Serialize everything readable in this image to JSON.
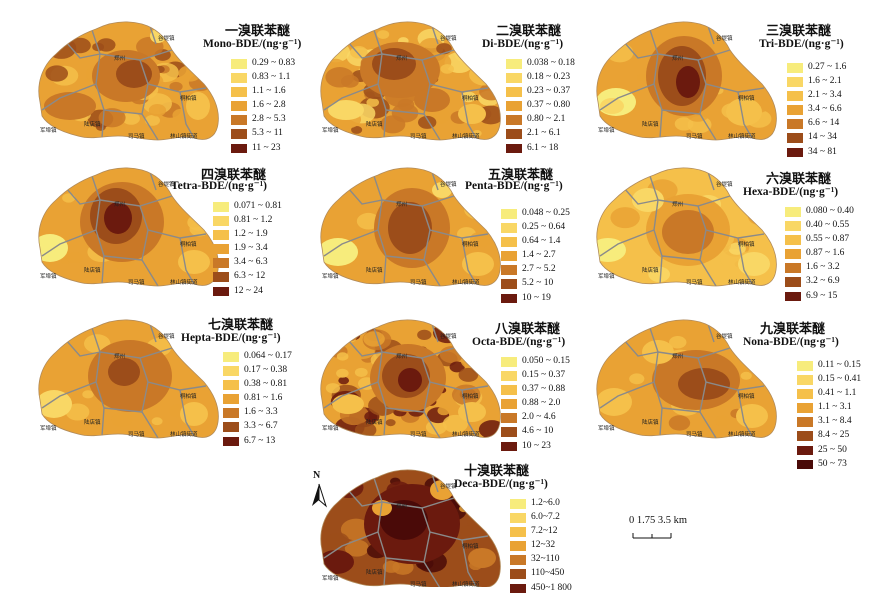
{
  "place_labels": {
    "north_town": "谷堤镇",
    "east_town": "桐柏镇",
    "center_town": "郑州",
    "west_town": "军埠镇",
    "southwest_town": "陆店镇",
    "south_town": "司马镇",
    "southeast_road": "林山镇街道"
  },
  "compass": {
    "letter": "N"
  },
  "scale_bar": {
    "label": "0 1.75 3.5 km"
  },
  "panels": [
    {
      "id": "mono",
      "title_cn": "一溴联苯醚",
      "title_en": "Mono-BDE/(ng·g⁻¹)",
      "legend": [
        "0.29 ~ 0.83",
        "0.83 ~ 1.1",
        "1.1 ~ 1.6",
        "1.6 ~ 2.8",
        "2.8 ~ 5.3",
        "5.3 ~ 11",
        "11 ~ 23"
      ]
    },
    {
      "id": "di",
      "title_cn": "二溴联苯醚",
      "title_en": "Di-BDE/(ng·g⁻¹)",
      "legend": [
        "0.038 ~ 0.18",
        "0.18 ~ 0.23",
        "0.23 ~ 0.37",
        "0.37 ~ 0.80",
        "0.80 ~ 2.1",
        "2.1 ~ 6.1",
        "6.1 ~ 18"
      ]
    },
    {
      "id": "tri",
      "title_cn": "三溴联苯醚",
      "title_en": "Tri-BDE/(ng·g⁻¹)",
      "legend": [
        "0.27 ~ 1.6",
        "1.6 ~ 2.1",
        "2.1 ~ 3.4",
        "3.4 ~ 6.6",
        "6.6 ~ 14",
        "14 ~ 34",
        "34 ~ 81"
      ]
    },
    {
      "id": "tetra",
      "title_cn": "四溴联苯醚",
      "title_en": "Tetra-BDE/(ng·g⁻¹)",
      "legend": [
        "0.071 ~ 0.81",
        "0.81 ~ 1.2",
        "1.2 ~ 1.9",
        "1.9 ~ 3.4",
        "3.4 ~ 6.3",
        "6.3 ~ 12",
        "12 ~ 24"
      ]
    },
    {
      "id": "penta",
      "title_cn": "五溴联苯醚",
      "title_en": "Penta-BDE/(ng·g⁻¹)",
      "legend": [
        "0.048 ~ 0.25",
        "0.25 ~ 0.64",
        "0.64 ~ 1.4",
        "1.4 ~ 2.7",
        "2.7 ~ 5.2",
        "5.2 ~ 10",
        "10 ~ 19"
      ]
    },
    {
      "id": "hexa",
      "title_cn": "六溴联苯醚",
      "title_en": "Hexa-BDE/(ng·g⁻¹)",
      "legend": [
        "0.080 ~ 0.40",
        "0.40 ~ 0.55",
        "0.55 ~ 0.87",
        "0.87 ~ 1.6",
        "1.6 ~ 3.2",
        "3.2 ~ 6.9",
        "6.9 ~ 15"
      ]
    },
    {
      "id": "hepta",
      "title_cn": "七溴联苯醚",
      "title_en": "Hepta-BDE/(ng·g⁻¹)",
      "legend": [
        "0.064 ~ 0.17",
        "0.17 ~ 0.38",
        "0.38 ~ 0.81",
        "0.81 ~ 1.6",
        "1.6 ~ 3.3",
        "3.3 ~ 6.7",
        "6.7 ~ 13"
      ]
    },
    {
      "id": "octa",
      "title_cn": "八溴联苯醚",
      "title_en": "Octa-BDE/(ng·g⁻¹)",
      "legend": [
        "0.050 ~ 0.15",
        "0.15 ~ 0.37",
        "0.37 ~ 0.88",
        "0.88 ~ 2.0",
        "2.0 ~ 4.6",
        "4.6 ~ 10",
        "10 ~ 23"
      ]
    },
    {
      "id": "nona",
      "title_cn": "九溴联苯醚",
      "title_en": "Nona-BDE/(ng·g⁻¹)",
      "legend": [
        "0.11 ~ 0.15",
        "0.15 ~ 0.41",
        "0.41 ~ 1.1",
        "1.1 ~ 3.1",
        "3.1 ~ 8.4",
        "8.4 ~ 25",
        "25 ~ 50",
        "50 ~ 73"
      ]
    },
    {
      "id": "deca",
      "title_cn": "十溴联苯醚",
      "title_en": "Deca-BDE/(ng·g⁻¹)",
      "legend": [
        "1.2~6.0",
        "6.0~7.2",
        "7.2~12",
        "12~32",
        "32~110",
        "110~450",
        "450~1 800"
      ]
    }
  ],
  "palette": [
    "#f7ec7c",
    "#f9d765",
    "#f5c04a",
    "#e9a234",
    "#c97827",
    "#9c4d1a",
    "#6b1a0e",
    "#4a0a08"
  ]
}
